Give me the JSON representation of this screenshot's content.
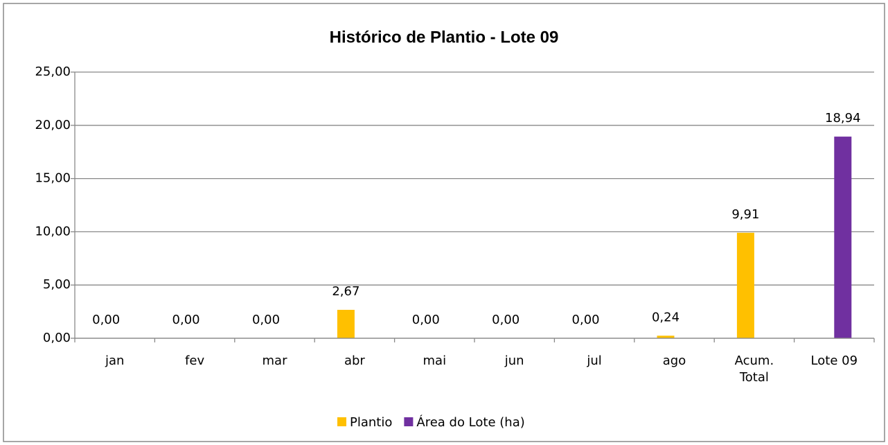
{
  "chart_data": {
    "type": "bar",
    "title": "Histórico de Plantio - Lote 09",
    "categories": [
      "jan",
      "fev",
      "mar",
      "abr",
      "mai",
      "jun",
      "jul",
      "ago",
      "Acum. Total",
      "Lote 09"
    ],
    "series": [
      {
        "name": "Plantio",
        "color": "#FFC000",
        "values": [
          0,
          0,
          0,
          2.67,
          0,
          0,
          0,
          0.24,
          9.91,
          null
        ],
        "value_labels": [
          "0,00",
          "0,00",
          "0,00",
          "2,67",
          "0,00",
          "0,00",
          "0,00",
          "0,24",
          "9,91",
          null
        ]
      },
      {
        "name": "Área do Lote (ha)",
        "color": "#7030A0",
        "values": [
          null,
          null,
          null,
          null,
          null,
          null,
          null,
          null,
          null,
          18.94
        ],
        "value_labels": [
          null,
          null,
          null,
          null,
          null,
          null,
          null,
          null,
          null,
          "18,94"
        ]
      }
    ],
    "ylim": [
      0,
      25
    ],
    "yticks": [
      {
        "value": 0,
        "label": "0,00"
      },
      {
        "value": 5,
        "label": "5,00"
      },
      {
        "value": 10,
        "label": "10,00"
      },
      {
        "value": 15,
        "label": "15,00"
      },
      {
        "value": 20,
        "label": "20,00"
      },
      {
        "value": 25,
        "label": "25,00"
      }
    ],
    "grid": true,
    "legend": "bottom"
  }
}
